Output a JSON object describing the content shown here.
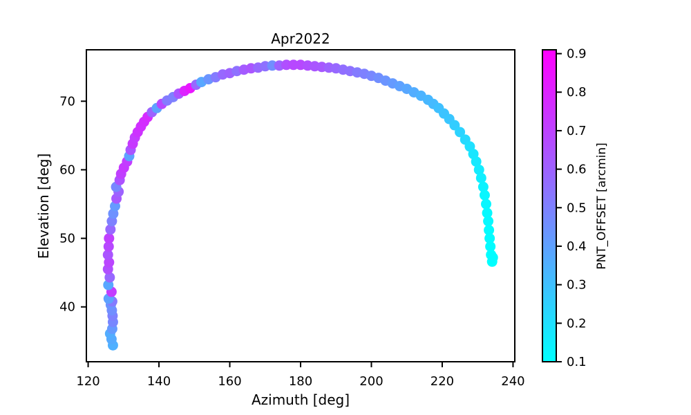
{
  "chart_data": {
    "type": "scatter",
    "title": "Apr2022",
    "xlabel": "Azimuth [deg]",
    "ylabel": "Elevation [deg]",
    "xlim": [
      119.5,
      240.5
    ],
    "ylim": [
      32.0,
      77.5
    ],
    "xticks": [
      120,
      140,
      160,
      180,
      200,
      220,
      240
    ],
    "yticks": [
      40,
      50,
      60,
      70
    ],
    "grid": false,
    "colorbar": {
      "label": "PNT_OFFSET [arcmin]",
      "colormap": "cool",
      "range": [
        0.1,
        0.91
      ],
      "ticks": [
        0.1,
        0.2,
        0.3,
        0.4,
        0.5,
        0.6,
        0.7,
        0.8,
        0.9
      ],
      "color_low": "#00ffff",
      "color_high": "#ff00ff"
    },
    "points": [
      [
        127.0,
        34.4,
        0.35
      ],
      [
        126.6,
        35.3,
        0.37
      ],
      [
        126.2,
        36.1,
        0.36
      ],
      [
        126.8,
        36.8,
        0.42
      ],
      [
        127.0,
        37.8,
        0.48
      ],
      [
        126.9,
        38.7,
        0.5
      ],
      [
        126.7,
        39.5,
        0.46
      ],
      [
        126.4,
        40.3,
        0.44
      ],
      [
        126.8,
        40.8,
        0.52
      ],
      [
        125.8,
        41.2,
        0.4
      ],
      [
        126.6,
        42.2,
        0.72
      ],
      [
        125.7,
        43.2,
        0.38
      ],
      [
        126.1,
        44.3,
        0.58
      ],
      [
        125.6,
        45.5,
        0.66
      ],
      [
        125.9,
        46.5,
        0.69
      ],
      [
        125.6,
        47.6,
        0.64
      ],
      [
        125.8,
        48.8,
        0.68
      ],
      [
        125.9,
        50.0,
        0.71
      ],
      [
        126.3,
        51.3,
        0.58
      ],
      [
        126.7,
        52.5,
        0.5
      ],
      [
        127.1,
        53.6,
        0.45
      ],
      [
        127.6,
        54.7,
        0.42
      ],
      [
        128.0,
        55.8,
        0.63
      ],
      [
        128.6,
        56.8,
        0.6
      ],
      [
        127.9,
        57.5,
        0.48
      ],
      [
        128.9,
        58.5,
        0.65
      ],
      [
        129.3,
        59.4,
        0.71
      ],
      [
        130.1,
        60.3,
        0.73
      ],
      [
        131.0,
        61.2,
        0.72
      ],
      [
        131.6,
        62.0,
        0.4
      ],
      [
        132.0,
        62.9,
        0.64
      ],
      [
        132.6,
        63.8,
        0.73
      ],
      [
        133.2,
        64.7,
        0.72
      ],
      [
        134.0,
        65.5,
        0.75
      ],
      [
        134.9,
        66.3,
        0.76
      ],
      [
        135.8,
        67.0,
        0.77
      ],
      [
        136.8,
        67.7,
        0.78
      ],
      [
        138.0,
        68.4,
        0.6
      ],
      [
        139.4,
        69.0,
        0.4
      ],
      [
        140.8,
        69.6,
        0.68
      ],
      [
        142.3,
        70.1,
        0.52
      ],
      [
        144.0,
        70.6,
        0.5
      ],
      [
        145.6,
        71.1,
        0.64
      ],
      [
        147.2,
        71.5,
        0.8
      ],
      [
        148.8,
        71.9,
        0.84
      ],
      [
        150.5,
        72.4,
        0.58
      ],
      [
        152.0,
        72.8,
        0.38
      ],
      [
        154.0,
        73.2,
        0.44
      ],
      [
        156.0,
        73.5,
        0.52
      ],
      [
        158.0,
        73.9,
        0.58
      ],
      [
        160.0,
        74.1,
        0.6
      ],
      [
        162.0,
        74.4,
        0.55
      ],
      [
        164.0,
        74.6,
        0.62
      ],
      [
        166.0,
        74.8,
        0.64
      ],
      [
        168.0,
        74.9,
        0.58
      ],
      [
        170.0,
        75.1,
        0.55
      ],
      [
        172.0,
        75.2,
        0.46
      ],
      [
        174.0,
        75.2,
        0.6
      ],
      [
        176.0,
        75.3,
        0.66
      ],
      [
        178.0,
        75.3,
        0.68
      ],
      [
        180.0,
        75.3,
        0.68
      ],
      [
        182.0,
        75.2,
        0.66
      ],
      [
        184.0,
        75.1,
        0.64
      ],
      [
        186.0,
        75.0,
        0.63
      ],
      [
        188.0,
        74.9,
        0.6
      ],
      [
        190.0,
        74.8,
        0.58
      ],
      [
        192.0,
        74.6,
        0.56
      ],
      [
        194.0,
        74.4,
        0.55
      ],
      [
        196.0,
        74.2,
        0.52
      ],
      [
        198.0,
        74.0,
        0.5
      ],
      [
        200.0,
        73.7,
        0.48
      ],
      [
        202.0,
        73.4,
        0.46
      ],
      [
        204.0,
        73.0,
        0.44
      ],
      [
        206.0,
        72.6,
        0.42
      ],
      [
        208.0,
        72.2,
        0.4
      ],
      [
        210.0,
        71.8,
        0.38
      ],
      [
        212.0,
        71.3,
        0.36
      ],
      [
        214.0,
        70.8,
        0.34
      ],
      [
        216.0,
        70.2,
        0.33
      ],
      [
        217.5,
        69.6,
        0.32
      ],
      [
        219.0,
        69.0,
        0.3
      ],
      [
        220.5,
        68.2,
        0.29
      ],
      [
        222.0,
        67.4,
        0.28
      ],
      [
        223.5,
        66.5,
        0.26
      ],
      [
        225.0,
        65.5,
        0.24
      ],
      [
        226.5,
        64.4,
        0.22
      ],
      [
        227.8,
        63.4,
        0.2
      ],
      [
        228.8,
        62.3,
        0.18
      ],
      [
        229.6,
        61.2,
        0.17
      ],
      [
        230.4,
        60.0,
        0.16
      ],
      [
        231.0,
        58.8,
        0.15
      ],
      [
        231.6,
        57.5,
        0.14
      ],
      [
        232.0,
        56.3,
        0.13
      ],
      [
        232.4,
        55.0,
        0.13
      ],
      [
        232.7,
        53.7,
        0.12
      ],
      [
        233.0,
        52.5,
        0.12
      ],
      [
        233.2,
        51.2,
        0.11
      ],
      [
        233.4,
        50.0,
        0.11
      ],
      [
        233.6,
        48.8,
        0.11
      ],
      [
        233.8,
        47.6,
        0.1
      ],
      [
        234.1,
        46.6,
        0.1
      ],
      [
        234.3,
        47.2,
        0.11
      ]
    ]
  }
}
